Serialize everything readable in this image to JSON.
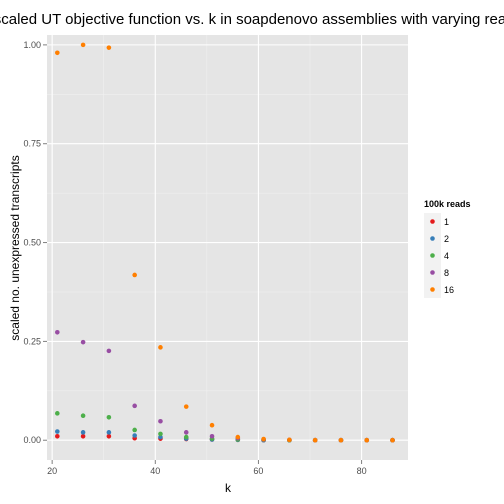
{
  "chart_data": {
    "type": "scatter",
    "title": "f scaled UT objective function vs. k in soapdenovo assemblies with varying read",
    "xlabel": "k",
    "ylabel": "scaled no. unexpressed transcripts",
    "xlim": [
      19,
      89
    ],
    "ylim": [
      -0.05,
      1.025
    ],
    "x_ticks": [
      20,
      40,
      60,
      80
    ],
    "y_ticks": [
      0.0,
      0.25,
      0.5,
      0.75,
      1.0
    ],
    "x_tick_labels": [
      "20",
      "40",
      "60",
      "80"
    ],
    "y_tick_labels": [
      "0.00",
      "0.25",
      "0.50",
      "0.75",
      "1.00"
    ],
    "grid": true,
    "legend": {
      "title": "100k reads",
      "position": "right"
    },
    "series": [
      {
        "name": "1",
        "color": "#e41a1c",
        "x": [
          21,
          26,
          31,
          36,
          41,
          46,
          51,
          56,
          61,
          66,
          71,
          76,
          81,
          86
        ],
        "y": [
          0.01,
          0.01,
          0.01,
          0.005,
          0.004,
          0.003,
          0.002,
          0.001,
          0.0,
          0.0,
          0.0,
          0.0,
          0.0,
          0.0
        ]
      },
      {
        "name": "2",
        "color": "#377eb8",
        "x": [
          21,
          26,
          31,
          36,
          41,
          46,
          51,
          56,
          61,
          66,
          71,
          76,
          81,
          86
        ],
        "y": [
          0.022,
          0.02,
          0.02,
          0.012,
          0.008,
          0.004,
          0.002,
          0.001,
          0.0,
          0.0,
          0.0,
          0.0,
          0.0,
          0.0
        ]
      },
      {
        "name": "4",
        "color": "#4daf4a",
        "x": [
          21,
          26,
          31,
          36,
          41,
          46,
          51,
          56,
          61,
          66,
          71,
          76,
          81,
          86
        ],
        "y": [
          0.068,
          0.062,
          0.058,
          0.026,
          0.016,
          0.008,
          0.004,
          0.002,
          0.001,
          0.0,
          0.0,
          0.0,
          0.0,
          0.0
        ]
      },
      {
        "name": "8",
        "color": "#984ea3",
        "x": [
          21,
          26,
          31,
          36,
          41,
          46,
          51,
          56,
          61,
          66,
          71,
          76,
          81,
          86
        ],
        "y": [
          0.273,
          0.248,
          0.226,
          0.087,
          0.048,
          0.02,
          0.01,
          0.005,
          0.002,
          0.001,
          0.0,
          0.0,
          0.0,
          0.0
        ]
      },
      {
        "name": "16",
        "color": "#ff7f00",
        "x": [
          21,
          26,
          31,
          36,
          41,
          46,
          51,
          56,
          61,
          66,
          71,
          76,
          81,
          86
        ],
        "y": [
          0.98,
          1.0,
          0.993,
          0.418,
          0.235,
          0.085,
          0.038,
          0.008,
          0.003,
          0.001,
          0.0,
          0.0,
          0.0,
          0.0
        ]
      }
    ]
  }
}
